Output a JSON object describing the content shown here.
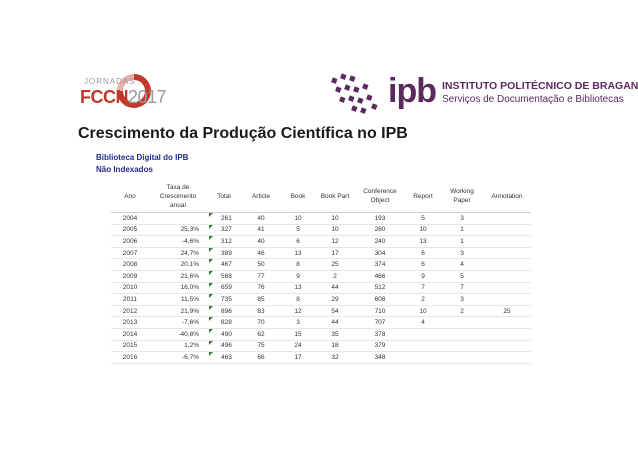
{
  "logos": {
    "fccn": {
      "small": "JORNADAS",
      "brand": "FCCN",
      "year": "2017"
    },
    "ipb": {
      "mark": "ipb",
      "line1": "INSTITUTO POLITÉCNICO DE BRAGANÇA",
      "line2": "Serviços de Documentação e Bibliotecas"
    }
  },
  "title": "Crescimento da Produção Científica no IPB",
  "subtitles": [
    "Biblioteca Digital do IPB",
    "Não Indexados"
  ],
  "colors": {
    "ipb_purple": "#5a2a5f",
    "fccn_red": "#c0392b",
    "subtitle_blue": "#1f2d8a",
    "flag_green": "#2e7d32"
  },
  "table": {
    "headers": [
      "Ano",
      "Taxa de Crescimento anual",
      "Total",
      "Article",
      "Book",
      "Book Part",
      "Conference Object",
      "Report",
      "Working Paper",
      "Annotation"
    ],
    "rows": [
      [
        "2004",
        "",
        "261",
        "40",
        "10",
        "10",
        "193",
        "5",
        "3",
        ""
      ],
      [
        "2005",
        "25,3%",
        "327",
        "41",
        "5",
        "10",
        "260",
        "10",
        "1",
        ""
      ],
      [
        "2006",
        "-4,6%",
        "312",
        "40",
        "6",
        "12",
        "240",
        "13",
        "1",
        ""
      ],
      [
        "2007",
        "24,7%",
        "389",
        "46",
        "13",
        "17",
        "304",
        "6",
        "3",
        ""
      ],
      [
        "2008",
        "20,1%",
        "467",
        "50",
        "8",
        "25",
        "374",
        "6",
        "4",
        ""
      ],
      [
        "2009",
        "21,6%",
        "568",
        "77",
        "9",
        "2",
        "466",
        "9",
        "5",
        ""
      ],
      [
        "2010",
        "16,0%",
        "659",
        "76",
        "13",
        "44",
        "512",
        "7",
        "7",
        ""
      ],
      [
        "2011",
        "11,5%",
        "735",
        "85",
        "8",
        "29",
        "608",
        "2",
        "3",
        ""
      ],
      [
        "2012",
        "21,9%",
        "896",
        "83",
        "12",
        "54",
        "710",
        "10",
        "2",
        "25"
      ],
      [
        "2013",
        "-7,6%",
        "828",
        "70",
        "3",
        "44",
        "707",
        "4",
        "",
        ""
      ],
      [
        "2014",
        "-40,8%",
        "490",
        "62",
        "15",
        "35",
        "378",
        "",
        "",
        ""
      ],
      [
        "2015",
        "1,2%",
        "496",
        "75",
        "24",
        "18",
        "379",
        "",
        "",
        ""
      ],
      [
        "2016",
        "-6,7%",
        "463",
        "66",
        "17",
        "32",
        "348",
        "",
        "",
        ""
      ]
    ]
  }
}
